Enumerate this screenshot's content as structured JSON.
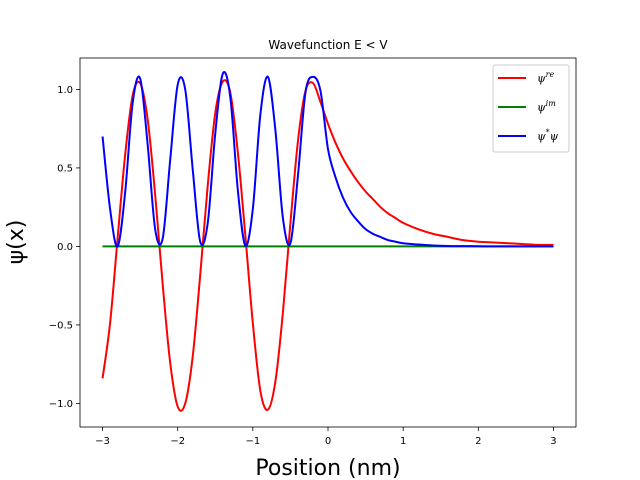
{
  "chart_data": {
    "type": "line",
    "title": "Wavefunction E < V",
    "xlabel": "Position (nm)",
    "ylabel": "ψ(x)",
    "xlim": [
      -3.3,
      3.3
    ],
    "ylim": [
      -1.15,
      1.2
    ],
    "xticks": [
      -3,
      -2,
      -1,
      0,
      1,
      2,
      3
    ],
    "xtick_labels": [
      "−3",
      "−2",
      "−1",
      "0",
      "1",
      "2",
      "3"
    ],
    "yticks": [
      -1.0,
      -0.5,
      0.0,
      0.5,
      1.0
    ],
    "ytick_labels": [
      "−1.0",
      "−0.5",
      "0.0",
      "0.5",
      "1.0"
    ],
    "grid": false,
    "legend_position": "top-right",
    "x": [
      -3.0,
      -2.9,
      -2.8,
      -2.7,
      -2.6,
      -2.5,
      -2.4,
      -2.3,
      -2.2,
      -2.1,
      -2.0,
      -1.9,
      -1.8,
      -1.7,
      -1.6,
      -1.5,
      -1.4,
      -1.3,
      -1.2,
      -1.1,
      -1.0,
      -0.9,
      -0.8,
      -0.7,
      -0.6,
      -0.5,
      -0.4,
      -0.3,
      -0.2,
      -0.1,
      0.0,
      0.1,
      0.2,
      0.3,
      0.4,
      0.5,
      0.6,
      0.7,
      0.8,
      0.9,
      1.0,
      1.2,
      1.4,
      1.6,
      1.8,
      2.0,
      2.2,
      2.4,
      2.6,
      2.8,
      3.0
    ],
    "series": [
      {
        "name": "ψ^re",
        "base": "ψ",
        "sup": "re",
        "color": "#ff0000",
        "values": [
          -0.84,
          -0.49,
          0.05,
          0.58,
          0.96,
          1.04,
          0.81,
          0.33,
          -0.24,
          -0.74,
          -1.02,
          -1.0,
          -0.7,
          -0.18,
          0.39,
          0.85,
          1.05,
          0.98,
          0.6,
          0.07,
          -0.49,
          -0.92,
          -1.04,
          -0.86,
          -0.42,
          0.15,
          0.67,
          0.99,
          1.04,
          0.92,
          0.78,
          0.66,
          0.56,
          0.48,
          0.41,
          0.35,
          0.3,
          0.25,
          0.21,
          0.18,
          0.15,
          0.11,
          0.08,
          0.06,
          0.04,
          0.03,
          0.025,
          0.02,
          0.015,
          0.01,
          0.01
        ]
      },
      {
        "name": "ψ^im",
        "base": "ψ",
        "sup": "im",
        "color": "#008000",
        "values": [
          0,
          0,
          0,
          0,
          0,
          0,
          0,
          0,
          0,
          0,
          0,
          0,
          0,
          0,
          0,
          0,
          0,
          0,
          0,
          0,
          0,
          0,
          0,
          0,
          0,
          0,
          0,
          0,
          0,
          0,
          0,
          0,
          0,
          0,
          0,
          0,
          0,
          0,
          0,
          0,
          0,
          0,
          0,
          0,
          0,
          0,
          0,
          0,
          0,
          0,
          0
        ]
      },
      {
        "name": "ψ*ψ",
        "base": "ψ",
        "sup": "*",
        "tail": "ψ",
        "color": "#0000ff",
        "values": [
          0.7,
          0.24,
          0.0,
          0.34,
          0.91,
          1.07,
          0.65,
          0.11,
          0.05,
          0.55,
          1.03,
          1.0,
          0.49,
          0.03,
          0.15,
          0.72,
          1.1,
          0.95,
          0.36,
          0.005,
          0.24,
          0.84,
          1.08,
          0.74,
          0.18,
          0.02,
          0.45,
          0.98,
          1.08,
          0.99,
          0.62,
          0.44,
          0.31,
          0.22,
          0.16,
          0.11,
          0.08,
          0.06,
          0.04,
          0.03,
          0.02,
          0.012,
          0.006,
          0.003,
          0.002,
          0.001,
          0.0,
          0.0,
          0.0,
          0.0,
          0.0
        ]
      }
    ]
  }
}
